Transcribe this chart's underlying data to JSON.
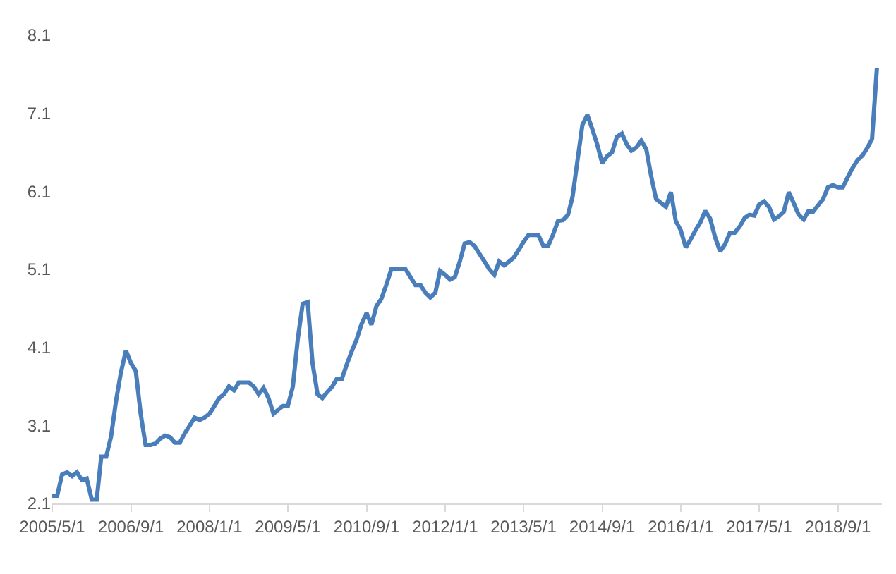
{
  "chart_data": {
    "type": "line",
    "x": [
      "2005-05",
      "2005-06",
      "2005-07",
      "2005-08",
      "2005-09",
      "2005-10",
      "2005-11",
      "2005-12",
      "2006-01",
      "2006-02",
      "2006-03",
      "2006-04",
      "2006-05",
      "2006-06",
      "2006-07",
      "2006-08",
      "2006-09",
      "2006-10",
      "2006-11",
      "2006-12",
      "2007-01",
      "2007-02",
      "2007-03",
      "2007-04",
      "2007-05",
      "2007-06",
      "2007-07",
      "2007-08",
      "2007-09",
      "2007-10",
      "2007-11",
      "2007-12",
      "2008-01",
      "2008-02",
      "2008-03",
      "2008-04",
      "2008-05",
      "2008-06",
      "2008-07",
      "2008-08",
      "2008-09",
      "2008-10",
      "2008-11",
      "2008-12",
      "2009-01",
      "2009-02",
      "2009-03",
      "2009-04",
      "2009-05",
      "2009-06",
      "2009-07",
      "2009-08",
      "2009-09",
      "2009-10",
      "2009-11",
      "2009-12",
      "2010-01",
      "2010-02",
      "2010-03",
      "2010-04",
      "2010-05",
      "2010-06",
      "2010-07",
      "2010-08",
      "2010-09",
      "2010-10",
      "2010-11",
      "2010-12",
      "2011-01",
      "2011-02",
      "2011-03",
      "2011-04",
      "2011-05",
      "2011-06",
      "2011-07",
      "2011-08",
      "2011-09",
      "2011-10",
      "2011-11",
      "2011-12",
      "2012-01",
      "2012-02",
      "2012-03",
      "2012-04",
      "2012-05",
      "2012-06",
      "2012-07",
      "2012-08",
      "2012-09",
      "2012-10",
      "2012-11",
      "2012-12",
      "2013-01",
      "2013-02",
      "2013-03",
      "2013-04",
      "2013-05",
      "2013-06",
      "2013-07",
      "2013-08",
      "2013-09",
      "2013-10",
      "2013-11",
      "2013-12",
      "2014-01",
      "2014-02",
      "2014-03",
      "2014-04",
      "2014-05",
      "2014-06",
      "2014-07",
      "2014-08",
      "2014-09",
      "2014-10",
      "2014-11",
      "2014-12",
      "2015-01",
      "2015-02",
      "2015-03",
      "2015-04",
      "2015-05",
      "2015-06",
      "2015-07",
      "2015-08",
      "2015-09",
      "2015-10",
      "2015-11",
      "2015-12",
      "2016-01",
      "2016-02",
      "2016-03",
      "2016-04",
      "2016-05",
      "2016-06",
      "2016-07",
      "2016-08",
      "2016-09",
      "2016-10",
      "2016-11",
      "2016-12",
      "2017-01",
      "2017-02",
      "2017-03",
      "2017-04",
      "2017-05",
      "2017-06",
      "2017-07",
      "2017-08",
      "2017-09",
      "2017-10",
      "2017-11",
      "2017-12",
      "2018-01",
      "2018-02",
      "2018-03",
      "2018-04",
      "2018-05",
      "2018-06",
      "2018-07",
      "2018-08",
      "2018-09",
      "2018-10",
      "2018-11",
      "2018-12",
      "2019-01",
      "2019-02",
      "2019-03",
      "2019-04",
      "2019-05"
    ],
    "series": [
      {
        "color": "#4a7ebb",
        "values": [
          2.2,
          2.2,
          2.47,
          2.5,
          2.45,
          2.5,
          2.4,
          2.42,
          2.15,
          2.15,
          2.7,
          2.7,
          2.96,
          3.42,
          3.78,
          4.06,
          3.9,
          3.8,
          3.24,
          2.85,
          2.85,
          2.87,
          2.93,
          2.97,
          2.95,
          2.88,
          2.88,
          3.0,
          3.1,
          3.2,
          3.17,
          3.2,
          3.25,
          3.35,
          3.45,
          3.5,
          3.6,
          3.55,
          3.65,
          3.65,
          3.65,
          3.6,
          3.5,
          3.58,
          3.45,
          3.25,
          3.3,
          3.35,
          3.35,
          3.6,
          4.2,
          4.66,
          4.68,
          3.9,
          3.5,
          3.45,
          3.53,
          3.6,
          3.7,
          3.7,
          3.88,
          4.05,
          4.2,
          4.4,
          4.54,
          4.39,
          4.63,
          4.72,
          4.9,
          5.1,
          5.1,
          5.1,
          5.1,
          5.0,
          4.9,
          4.9,
          4.8,
          4.74,
          4.8,
          5.08,
          5.03,
          4.97,
          5.0,
          5.2,
          5.43,
          5.45,
          5.4,
          5.3,
          5.2,
          5.1,
          5.03,
          5.2,
          5.15,
          5.2,
          5.25,
          5.35,
          5.45,
          5.54,
          5.54,
          5.54,
          5.4,
          5.4,
          5.55,
          5.72,
          5.73,
          5.8,
          6.03,
          6.5,
          6.95,
          7.08,
          6.9,
          6.7,
          6.46,
          6.55,
          6.6,
          6.8,
          6.84,
          6.7,
          6.62,
          6.66,
          6.75,
          6.64,
          6.3,
          6.0,
          5.95,
          5.9,
          6.09,
          5.72,
          5.6,
          5.38,
          5.48,
          5.6,
          5.7,
          5.85,
          5.75,
          5.51,
          5.33,
          5.42,
          5.57,
          5.57,
          5.65,
          5.76,
          5.8,
          5.79,
          5.93,
          5.97,
          5.9,
          5.74,
          5.78,
          5.84,
          6.09,
          5.95,
          5.8,
          5.74,
          5.84,
          5.84,
          5.92,
          6.0,
          6.15,
          6.18,
          6.15,
          6.15,
          6.28,
          6.4,
          6.5,
          6.56,
          6.65,
          6.77,
          7.68
        ]
      }
    ],
    "xlim": [
      "2005-05",
      "2019-06"
    ],
    "xticks": [
      {
        "value": "2005-05",
        "label": "2005/5/1"
      },
      {
        "value": "2006-09",
        "label": "2006/9/1"
      },
      {
        "value": "2008-01",
        "label": "2008/1/1"
      },
      {
        "value": "2009-05",
        "label": "2009/5/1"
      },
      {
        "value": "2010-09",
        "label": "2010/9/1"
      },
      {
        "value": "2012-01",
        "label": "2012/1/1"
      },
      {
        "value": "2013-05",
        "label": "2013/5/1"
      },
      {
        "value": "2014-09",
        "label": "2014/9/1"
      },
      {
        "value": "2016-01",
        "label": "2016/1/1"
      },
      {
        "value": "2017-05",
        "label": "2017/5/1"
      },
      {
        "value": "2018-09",
        "label": "2018/9/1"
      }
    ],
    "ylim": [
      2.1,
      8.1
    ],
    "yticks": [
      2.1,
      3.1,
      4.1,
      5.1,
      6.1,
      7.1,
      8.1
    ],
    "marker": "none",
    "line_style": "solid"
  }
}
